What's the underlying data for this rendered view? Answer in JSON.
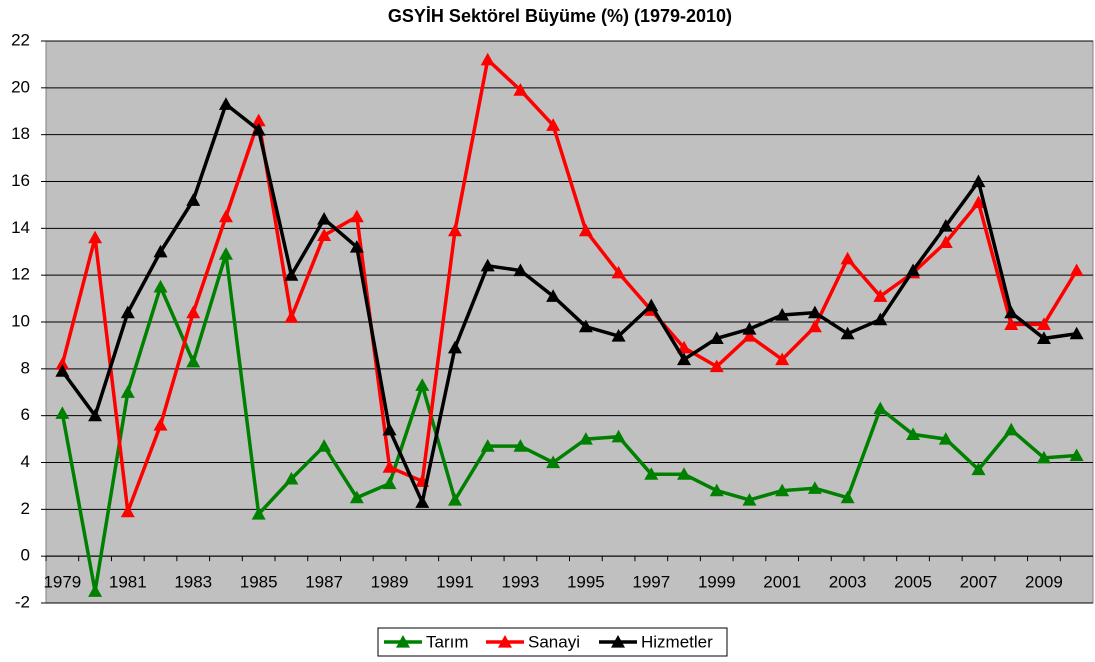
{
  "chart_data": {
    "type": "line",
    "title": "GSYİH Sektörel Büyüme (%) (1979-2010)",
    "categories": [
      "1979",
      null,
      "1981",
      null,
      "1983",
      null,
      "1985",
      null,
      "1987",
      null,
      "1989",
      null,
      "1991",
      null,
      "1993",
      null,
      "1995",
      null,
      "1997",
      null,
      "1999",
      null,
      "2001",
      null,
      "2003",
      null,
      "2005",
      null,
      "2007",
      null,
      "2009",
      null
    ],
    "series": [
      {
        "name": "Tarım",
        "color": "#008000",
        "values": [
          6.1,
          -1.5,
          7.0,
          11.5,
          8.3,
          12.9,
          1.8,
          3.3,
          4.7,
          2.5,
          3.1,
          7.3,
          2.4,
          4.7,
          4.7,
          4.0,
          5.0,
          5.1,
          3.5,
          3.5,
          2.8,
          2.4,
          2.8,
          2.9,
          2.5,
          6.3,
          5.2,
          5.0,
          3.7,
          5.4,
          4.2,
          4.3
        ]
      },
      {
        "name": "Sanayi",
        "color": "#ff0000",
        "values": [
          8.2,
          13.6,
          1.9,
          5.6,
          10.4,
          14.5,
          18.6,
          10.2,
          13.7,
          14.5,
          3.8,
          3.2,
          13.9,
          21.2,
          19.9,
          18.4,
          13.9,
          12.1,
          10.5,
          8.9,
          8.1,
          9.4,
          8.4,
          9.8,
          12.7,
          11.1,
          12.1,
          13.4,
          15.1,
          9.9,
          9.9,
          12.2
        ]
      },
      {
        "name": "Hizmetler",
        "color": "#000000",
        "values": [
          7.9,
          6.0,
          10.4,
          13.0,
          15.2,
          19.3,
          18.2,
          12.0,
          14.4,
          13.2,
          5.4,
          2.3,
          8.9,
          12.4,
          12.2,
          11.1,
          9.8,
          9.4,
          10.7,
          8.4,
          9.3,
          9.7,
          10.3,
          10.4,
          9.5,
          10.1,
          12.2,
          14.1,
          16.0,
          10.4,
          9.3,
          9.5
        ]
      }
    ],
    "ylim": [
      -2,
      22
    ],
    "yticks": [
      -2,
      0,
      2,
      4,
      6,
      8,
      10,
      12,
      14,
      16,
      18,
      20,
      22
    ],
    "grid": true,
    "legend": "bottom"
  }
}
